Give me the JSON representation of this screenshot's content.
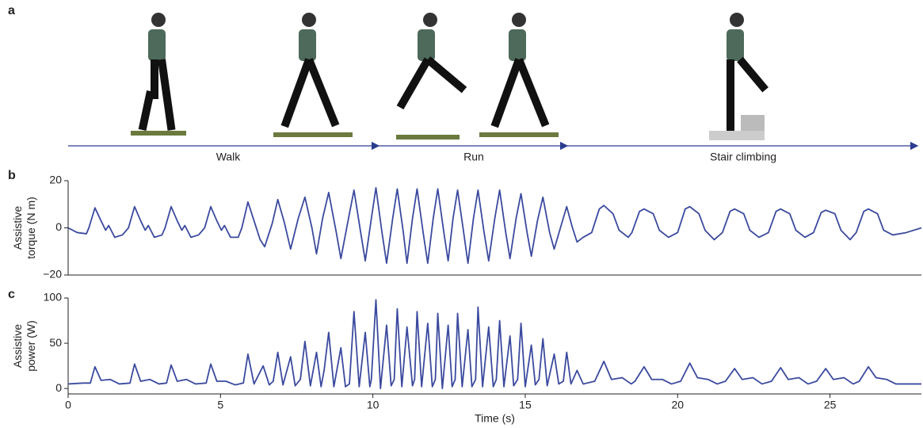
{
  "figure": {
    "panel_labels": [
      "a",
      "b",
      "c"
    ],
    "phases": [
      "Walk",
      "Run",
      "Stair climbing"
    ]
  },
  "chart_data": [
    {
      "type": "line",
      "ylabel_lines": [
        "Assistive",
        "torque (N m)"
      ],
      "xlim": [
        0,
        28
      ],
      "ylim": [
        -20,
        20
      ],
      "yticks": [
        20,
        0,
        {
          "value": -20,
          "label": "−20"
        }
      ],
      "x": [
        0,
        0.3,
        0.6,
        0.68,
        0.88,
        1.08,
        1.23,
        1.33,
        1.53,
        1.78,
        1.98,
        2.18,
        2.38,
        2.53,
        2.63,
        2.83,
        3.08,
        3.18,
        3.38,
        3.58,
        3.73,
        3.83,
        4.03,
        4.28,
        4.48,
        4.68,
        4.88,
        5.03,
        5.13,
        5.33,
        5.58,
        5.7,
        5.9,
        6.1,
        6.3,
        6.45,
        6.7,
        6.88,
        7.1,
        7.3,
        7.55,
        7.77,
        8.0,
        8.15,
        8.35,
        8.55,
        8.8,
        8.95,
        9.2,
        9.38,
        9.6,
        9.75,
        9.95,
        10.1,
        10.3,
        10.45,
        10.65,
        10.8,
        11.0,
        11.12,
        11.3,
        11.45,
        11.65,
        11.8,
        11.98,
        12.13,
        12.33,
        12.47,
        12.63,
        12.78,
        12.98,
        13.12,
        13.3,
        13.45,
        13.65,
        13.8,
        14.0,
        14.16,
        14.36,
        14.5,
        14.7,
        14.86,
        15.06,
        15.2,
        15.4,
        15.58,
        15.8,
        15.95,
        16.2,
        16.36,
        16.55,
        16.7,
        16.9,
        17.18,
        17.43,
        17.58,
        17.88,
        18.08,
        18.38,
        18.5,
        18.75,
        18.9,
        19.2,
        19.4,
        19.7,
        20.0,
        20.25,
        20.4,
        20.7,
        20.9,
        21.2,
        21.47,
        21.72,
        21.87,
        22.17,
        22.37,
        22.67,
        22.98,
        23.23,
        23.38,
        23.68,
        23.88,
        24.18,
        24.46,
        24.71,
        24.86,
        25.16,
        25.36,
        25.66,
        25.86,
        26.11,
        26.26,
        26.56,
        26.76,
        27.06,
        27.5,
        28
      ],
      "series": [
        {
          "color": "#3b4a9e",
          "values": [
            0,
            -2,
            -2.5,
            0,
            8.5,
            3,
            -1,
            1,
            -4,
            -3,
            0,
            9,
            3,
            -1,
            1,
            -4,
            -3,
            0,
            9,
            3,
            -1,
            1,
            -4,
            -3,
            0,
            9,
            3,
            -1,
            1,
            -4,
            -4,
            0,
            11,
            3,
            -5,
            -8,
            2,
            12,
            2,
            -9,
            4,
            13,
            0,
            -11,
            4,
            15,
            -2,
            -13,
            4,
            16,
            -2,
            -14,
            4,
            17,
            -2,
            -15,
            4,
            16.5,
            -2,
            -15,
            4,
            16.5,
            -2,
            -15,
            4,
            16.5,
            -2,
            -14,
            4,
            16,
            -2,
            -15,
            4,
            16,
            -2,
            -14,
            4,
            16,
            -2,
            -13,
            4,
            14.5,
            -2,
            -12,
            3,
            13,
            -2,
            -9,
            2,
            9,
            0,
            -6,
            -4,
            -2,
            8,
            9.5,
            6,
            -1,
            -4,
            -2,
            7,
            8,
            6,
            -1,
            -4,
            -2,
            8,
            9,
            6,
            -1,
            -5,
            -2,
            7,
            8,
            6,
            -1,
            -4,
            -2,
            7,
            8,
            6,
            -1,
            -4,
            -2,
            6.5,
            7.5,
            6,
            -1,
            -5,
            -2,
            7,
            8,
            6,
            -1,
            -3,
            -2,
            0
          ]
        }
      ]
    },
    {
      "type": "line",
      "ylabel_lines": [
        "Assistive",
        "power (W)"
      ],
      "xlabel": "Time (s)",
      "xlim": [
        0,
        28
      ],
      "ylim": [
        -6,
        100
      ],
      "yticks": [
        100,
        50,
        0
      ],
      "xticks": [
        0,
        5,
        10,
        15,
        20,
        25
      ],
      "x": [
        0,
        0.5,
        0.73,
        0.88,
        1.08,
        1.38,
        1.68,
        2.03,
        2.18,
        2.38,
        2.68,
        2.98,
        3.23,
        3.38,
        3.58,
        3.88,
        4.18,
        4.53,
        4.68,
        4.88,
        5.18,
        5.48,
        5.75,
        5.9,
        6.1,
        6.4,
        6.6,
        6.73,
        6.88,
        7.05,
        7.3,
        7.45,
        7.62,
        7.77,
        7.95,
        8.15,
        8.3,
        8.4,
        8.55,
        8.72,
        8.95,
        9.1,
        9.23,
        9.38,
        9.55,
        9.75,
        9.9,
        9.95,
        10.1,
        10.25,
        10.45,
        10.6,
        10.7,
        10.8,
        10.95,
        11.12,
        11.3,
        11.37,
        11.45,
        11.6,
        11.8,
        11.95,
        12.05,
        12.13,
        12.28,
        12.47,
        12.6,
        12.7,
        12.78,
        12.93,
        13.12,
        13.25,
        13.37,
        13.45,
        13.6,
        13.8,
        13.95,
        14.05,
        14.16,
        14.3,
        14.5,
        14.62,
        14.75,
        14.86,
        15.0,
        15.2,
        15.33,
        15.45,
        15.58,
        15.72,
        15.95,
        16.1,
        16.25,
        16.36,
        16.5,
        16.7,
        16.9,
        17.28,
        17.58,
        17.83,
        18.18,
        18.48,
        18.6,
        18.9,
        19.15,
        19.5,
        19.8,
        20.1,
        20.4,
        20.65,
        21.0,
        21.3,
        21.57,
        21.87,
        22.12,
        22.47,
        22.77,
        23.08,
        23.38,
        23.63,
        23.98,
        24.28,
        24.56,
        24.86,
        25.11,
        25.46,
        25.76,
        25.96,
        26.26,
        26.51,
        26.86,
        27.16,
        27.5,
        28
      ],
      "series": [
        {
          "color": "#3b4a9e",
          "values": [
            5,
            6,
            6,
            24,
            9,
            10,
            5,
            6,
            27,
            8,
            10,
            5,
            6,
            26,
            8,
            10,
            5,
            6,
            27,
            8,
            8,
            4,
            6,
            38,
            5,
            25,
            4,
            8,
            40,
            4,
            35,
            3,
            10,
            52,
            3,
            40,
            2,
            20,
            62,
            2,
            45,
            2,
            5,
            85,
            2,
            62,
            2,
            10,
            98,
            0,
            70,
            3,
            10,
            88,
            2,
            68,
            3,
            10,
            85,
            2,
            72,
            2,
            10,
            83,
            0,
            70,
            2,
            10,
            83,
            2,
            65,
            2,
            10,
            90,
            2,
            68,
            2,
            10,
            75,
            2,
            58,
            3,
            10,
            72,
            2,
            48,
            4,
            10,
            55,
            3,
            38,
            5,
            8,
            40,
            5,
            20,
            5,
            8,
            30,
            10,
            12,
            5,
            8,
            24,
            10,
            10,
            5,
            8,
            28,
            12,
            10,
            5,
            8,
            22,
            10,
            12,
            5,
            8,
            23,
            10,
            12,
            5,
            8,
            22,
            10,
            12,
            5,
            8,
            24,
            12,
            10,
            5,
            5,
            5
          ]
        }
      ]
    }
  ]
}
